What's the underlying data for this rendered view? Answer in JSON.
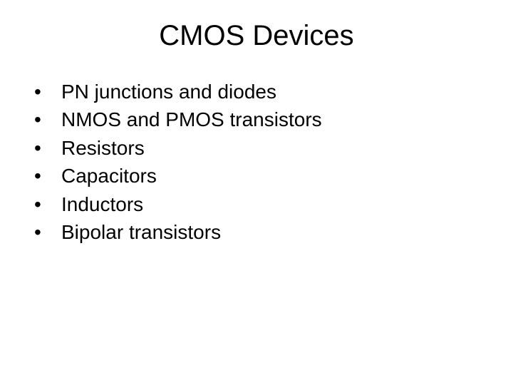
{
  "slide": {
    "title": "CMOS Devices",
    "title_fontsize": 40,
    "title_color": "#000000",
    "background_color": "#ffffff",
    "bullets": [
      "PN junctions and diodes",
      "NMOS and PMOS transistors",
      "Resistors",
      "Capacitors",
      "Inductors",
      "Bipolar transistors"
    ],
    "bullet_fontsize": 28,
    "bullet_color": "#000000",
    "bullet_marker": "•"
  }
}
